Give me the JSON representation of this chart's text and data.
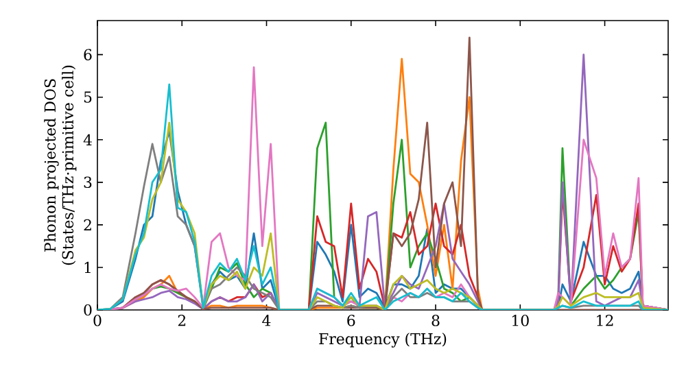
{
  "chart_data": {
    "type": "line",
    "xlabel": "Frequency (THz)",
    "ylabel": "Phonon projected DOS (States/THz·primitive cell)",
    "xlim": [
      0,
      13.5
    ],
    "ylim": [
      0,
      6.8
    ],
    "xticks": [
      0,
      2,
      4,
      6,
      8,
      10,
      12
    ],
    "yticks": [
      0,
      1,
      2,
      3,
      4,
      5,
      6
    ],
    "grid": false,
    "marker": "none",
    "line_style": "solid",
    "x": [
      0,
      0.3,
      0.6,
      0.9,
      1.1,
      1.3,
      1.5,
      1.7,
      1.9,
      2.1,
      2.3,
      2.5,
      2.7,
      2.9,
      3.1,
      3.3,
      3.5,
      3.7,
      3.9,
      4.1,
      4.3,
      5.0,
      5.2,
      5.4,
      5.6,
      5.8,
      6.0,
      6.2,
      6.4,
      6.6,
      6.8,
      7.0,
      7.2,
      7.4,
      7.6,
      7.8,
      8.0,
      8.2,
      8.4,
      8.6,
      8.8,
      9.0,
      9.1,
      10.8,
      10.9,
      11.0,
      11.2,
      11.5,
      11.8,
      12.0,
      12.2,
      12.4,
      12.6,
      12.8,
      12.9,
      13.5
    ],
    "series": [
      {
        "color": "#1f77b4",
        "values": [
          0,
          0.02,
          0.2,
          1.2,
          2.0,
          2.2,
          3.5,
          4.2,
          2.8,
          2.0,
          1.5,
          0.1,
          0.6,
          0.9,
          0.7,
          0.8,
          0.5,
          1.8,
          0.5,
          0.7,
          0,
          0,
          1.6,
          1.3,
          0.9,
          0.2,
          2.0,
          0.3,
          0.5,
          0.4,
          0.05,
          0.6,
          0.6,
          0.5,
          0.8,
          1.9,
          0.4,
          0.6,
          0.5,
          0.5,
          0.3,
          0.1,
          0,
          0,
          0.05,
          0.6,
          0.2,
          1.6,
          0.8,
          0.8,
          0.5,
          0.4,
          0.5,
          0.9,
          0.1,
          0
        ]
      },
      {
        "color": "#ff7f0e",
        "values": [
          null,
          null,
          0.05,
          0.2,
          0.3,
          0.5,
          0.6,
          0.8,
          0.4,
          0.3,
          0.2,
          0.02,
          0.1,
          0.1,
          0.05,
          0.1,
          0.1,
          0.1,
          0.1,
          0.05,
          0,
          0,
          0.05,
          0.05,
          0.05,
          0.05,
          0.1,
          0.05,
          0.05,
          0.05,
          0,
          3.3,
          5.9,
          3.2,
          3.0,
          2.0,
          0.8,
          2.0,
          0.5,
          3.5,
          5.0,
          0.5,
          0,
          0,
          null,
          null,
          null,
          null,
          null,
          null,
          null,
          null,
          null,
          null,
          null,
          null
        ]
      },
      {
        "color": "#2ca02c",
        "values": [
          0,
          0.01,
          0.05,
          0.25,
          0.35,
          0.5,
          0.55,
          0.5,
          0.4,
          0.3,
          0.2,
          0.02,
          0.5,
          1.0,
          0.9,
          1.1,
          0.6,
          0.3,
          0.5,
          0.4,
          0,
          0,
          3.8,
          4.4,
          0.3,
          0.1,
          0.3,
          0.05,
          0.05,
          0.05,
          0,
          2.5,
          4.0,
          1.0,
          1.5,
          1.8,
          1.2,
          0.5,
          0.4,
          0.2,
          0.3,
          0.1,
          0,
          0,
          0.3,
          3.8,
          0.1,
          0.5,
          0.8,
          0.5,
          0.7,
          1.0,
          1.2,
          2.3,
          0.1,
          0
        ]
      },
      {
        "color": "#d62728",
        "values": [
          null,
          null,
          0.05,
          0.3,
          0.4,
          0.6,
          0.7,
          0.6,
          0.45,
          0.3,
          0.2,
          0.02,
          0.2,
          0.3,
          0.2,
          0.3,
          0.3,
          0.6,
          0.3,
          0.4,
          0,
          0,
          2.2,
          1.6,
          1.5,
          0.3,
          2.5,
          0.5,
          1.2,
          0.9,
          0.05,
          1.8,
          1.7,
          2.3,
          1.3,
          1.5,
          2.5,
          1.5,
          1.3,
          2.0,
          0.8,
          0.3,
          0,
          0,
          0.1,
          2.8,
          0.2,
          1.0,
          2.7,
          0.6,
          1.5,
          0.9,
          1.2,
          2.5,
          0.1,
          0
        ]
      },
      {
        "color": "#9467bd",
        "values": [
          0,
          0.01,
          0.05,
          0.2,
          0.25,
          0.3,
          0.4,
          0.45,
          0.3,
          0.25,
          0.15,
          0.02,
          0.2,
          0.3,
          0.2,
          0.2,
          0.3,
          0.6,
          0.2,
          0.4,
          0,
          0,
          0.4,
          0.3,
          0.2,
          0.1,
          0.2,
          0.1,
          2.2,
          2.3,
          0.05,
          0.4,
          0.8,
          0.6,
          0.5,
          1.0,
          1.5,
          2.5,
          1.2,
          0.9,
          0.6,
          0.2,
          0,
          0,
          0.2,
          3.0,
          0.1,
          6.0,
          0.2,
          0.1,
          0.2,
          0.3,
          0.3,
          0.7,
          0.1,
          0
        ]
      },
      {
        "color": "#8c564b",
        "values": [
          0,
          0.01,
          0.05,
          0.3,
          0.4,
          0.6,
          0.7,
          0.6,
          0.45,
          0.3,
          0.2,
          0.02,
          0.05,
          0.05,
          0.05,
          0.05,
          0.05,
          0.05,
          0.05,
          0.05,
          0,
          0,
          0.1,
          0.1,
          0.1,
          0.05,
          0.05,
          0.05,
          0.05,
          0.05,
          0,
          1.8,
          1.5,
          1.8,
          2.6,
          4.4,
          1.0,
          2.5,
          3.0,
          1.5,
          6.4,
          0.3,
          0,
          0,
          0,
          0,
          0,
          0,
          0,
          0,
          0,
          0,
          0,
          0,
          0,
          0
        ]
      },
      {
        "color": "#e377c2",
        "values": [
          0,
          0.01,
          0.05,
          0.25,
          0.35,
          0.5,
          0.6,
          0.5,
          0.45,
          0.5,
          0.3,
          0.05,
          1.6,
          1.8,
          1.0,
          0.8,
          0.7,
          5.7,
          1.5,
          3.9,
          0,
          0,
          0.5,
          0.4,
          0.3,
          0.1,
          0.2,
          0.1,
          0.1,
          0.1,
          0,
          0.3,
          0.2,
          0.4,
          0.3,
          0.5,
          0.3,
          0.4,
          0.3,
          0.6,
          0.3,
          0.1,
          0,
          0,
          0.4,
          0.3,
          0.1,
          4.0,
          3.1,
          0.8,
          1.8,
          1.0,
          1.2,
          3.1,
          0.1,
          0
        ]
      },
      {
        "color": "#7f7f7f",
        "values": [
          0,
          0.02,
          0.3,
          1.8,
          2.9,
          3.9,
          3.0,
          3.6,
          2.2,
          2.0,
          1.5,
          0.05,
          0.5,
          0.6,
          0.8,
          1.0,
          0.8,
          0.5,
          0.4,
          0.3,
          0,
          0,
          0.2,
          0.2,
          0.1,
          0.05,
          0.1,
          0.05,
          0.1,
          0.1,
          0,
          0.3,
          0.5,
          0.3,
          0.3,
          0.4,
          0.3,
          0.3,
          0.2,
          0.2,
          0.2,
          0.05,
          0,
          0,
          0.05,
          0.1,
          0.05,
          0.1,
          0.1,
          0.1,
          0.1,
          0.1,
          0.1,
          0.1,
          0,
          0
        ]
      },
      {
        "color": "#bcbd22",
        "values": [
          0,
          0.02,
          0.25,
          1.4,
          1.7,
          2.6,
          3.0,
          4.4,
          2.6,
          2.3,
          1.8,
          0.05,
          0.6,
          0.8,
          0.7,
          0.9,
          0.5,
          1.0,
          0.8,
          1.8,
          0,
          0,
          0.3,
          0.2,
          0.1,
          0.05,
          0.3,
          0.1,
          0.1,
          0.1,
          0,
          0.6,
          0.8,
          0.5,
          0.6,
          0.7,
          0.5,
          0.4,
          0.5,
          0.4,
          0.3,
          0.1,
          0,
          0,
          0.1,
          0.3,
          0.1,
          0.3,
          0.4,
          0.3,
          0.3,
          0.3,
          0.3,
          0.4,
          0.05,
          0
        ]
      },
      {
        "color": "#17becf",
        "values": [
          0,
          0.02,
          0.25,
          1.3,
          1.8,
          3.0,
          3.3,
          5.3,
          2.4,
          2.3,
          1.6,
          0.05,
          0.8,
          1.1,
          0.9,
          1.2,
          0.7,
          1.5,
          0.6,
          1.0,
          0,
          0,
          0.5,
          0.4,
          0.3,
          0.1,
          0.4,
          0.1,
          0.2,
          0.3,
          0,
          0.2,
          0.3,
          0.4,
          0.3,
          0.5,
          0.3,
          0.3,
          0.2,
          0.4,
          0.2,
          0.05,
          0,
          0,
          0.05,
          0.1,
          0.05,
          0.2,
          0.1,
          0.1,
          0.1,
          0.1,
          0.1,
          0.2,
          0,
          0
        ]
      }
    ]
  }
}
